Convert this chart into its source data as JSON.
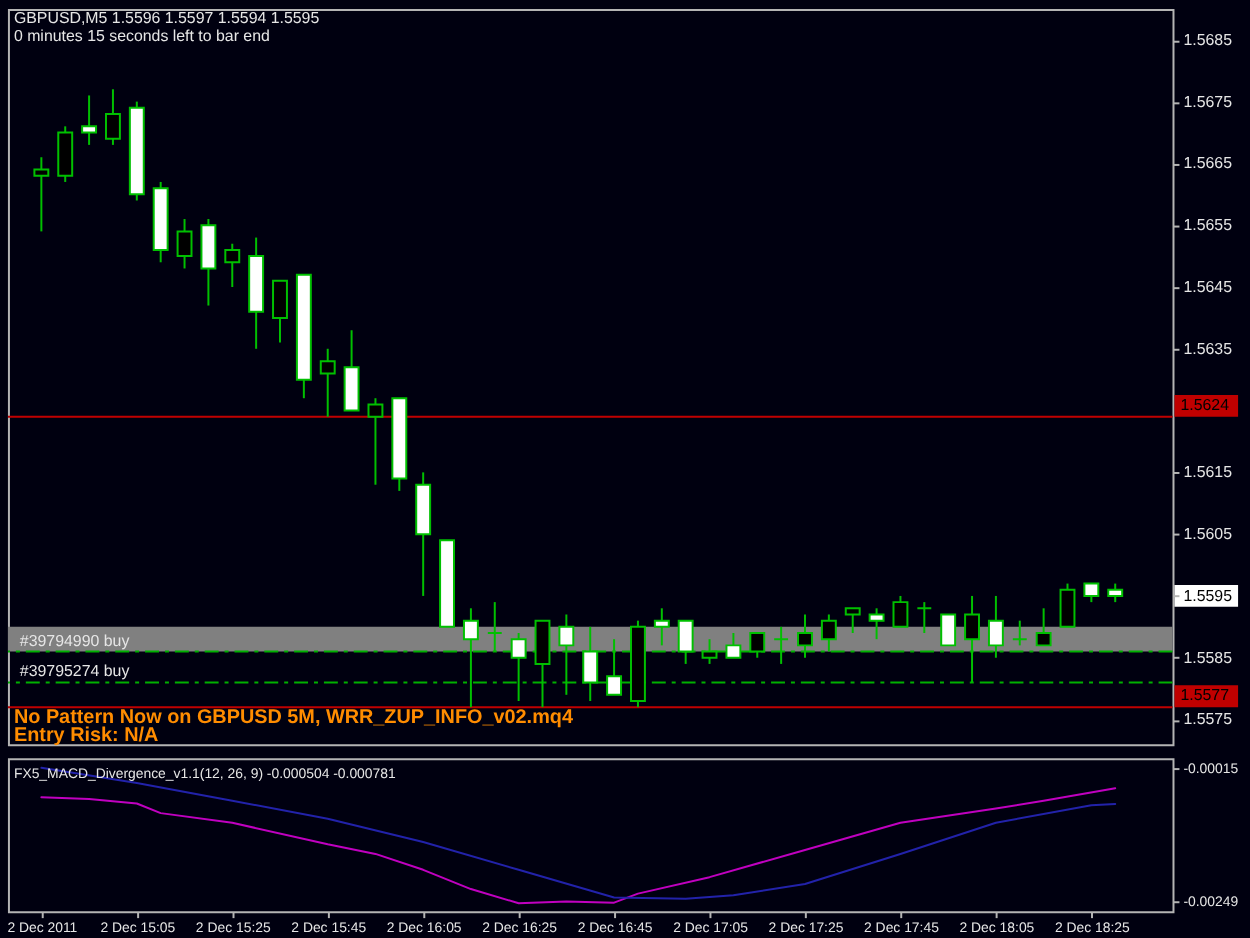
{
  "chart_data": [
    {
      "type": "candlestick",
      "title": "GBPUSD,M5  1.5596 1.5597 1.5594 1.5595",
      "subtitle": "0 minutes 15 seconds left to bar end",
      "x": [
        "2011-12-02T14:45",
        "2011-12-02T14:50",
        "2011-12-02T14:55",
        "2011-12-02T15:00",
        "2011-12-02T15:05",
        "2011-12-02T15:10",
        "2011-12-02T15:15",
        "2011-12-02T15:20",
        "2011-12-02T15:25",
        "2011-12-02T15:30",
        "2011-12-02T15:35",
        "2011-12-02T15:40",
        "2011-12-02T15:45",
        "2011-12-02T15:50",
        "2011-12-02T15:55",
        "2011-12-02T16:00",
        "2011-12-02T16:05",
        "2011-12-02T16:10",
        "2011-12-02T16:15",
        "2011-12-02T16:20",
        "2011-12-02T16:25",
        "2011-12-02T16:30",
        "2011-12-02T16:35",
        "2011-12-02T16:40",
        "2011-12-02T16:45",
        "2011-12-02T16:50",
        "2011-12-02T16:55",
        "2011-12-02T17:00",
        "2011-12-02T17:05",
        "2011-12-02T17:10",
        "2011-12-02T17:15",
        "2011-12-02T17:20",
        "2011-12-02T17:25",
        "2011-12-02T17:30",
        "2011-12-02T17:35",
        "2011-12-02T17:40",
        "2011-12-02T17:45",
        "2011-12-02T17:50",
        "2011-12-02T17:55",
        "2011-12-02T18:00",
        "2011-12-02T18:05",
        "2011-12-02T18:10",
        "2011-12-02T18:15",
        "2011-12-02T18:20",
        "2011-12-02T18:25",
        "2011-12-02T18:30"
      ],
      "ohlc": [
        [
          1.5663,
          1.5666,
          1.5654,
          1.5664
        ],
        [
          1.5663,
          1.5671,
          1.5662,
          1.567
        ],
        [
          1.5671,
          1.5676,
          1.5668,
          1.567
        ],
        [
          1.5669,
          1.5677,
          1.5668,
          1.5673
        ],
        [
          1.5674,
          1.5675,
          1.5659,
          1.566
        ],
        [
          1.5661,
          1.5662,
          1.5649,
          1.5651
        ],
        [
          1.565,
          1.5656,
          1.5648,
          1.5654
        ],
        [
          1.5655,
          1.5656,
          1.5642,
          1.5648
        ],
        [
          1.5649,
          1.5652,
          1.5645,
          1.5651
        ],
        [
          1.565,
          1.5653,
          1.5635,
          1.5641
        ],
        [
          1.564,
          1.5646,
          1.5636,
          1.5646
        ],
        [
          1.5647,
          1.5647,
          1.5627,
          1.563
        ],
        [
          1.5631,
          1.5635,
          1.5624,
          1.5633
        ],
        [
          1.5632,
          1.5638,
          1.5625,
          1.5625
        ],
        [
          1.5624,
          1.5627,
          1.5613,
          1.5626
        ],
        [
          1.5627,
          1.5627,
          1.5612,
          1.5614
        ],
        [
          1.5613,
          1.5615,
          1.5595,
          1.5605
        ],
        [
          1.5604,
          1.5604,
          1.559,
          1.559
        ],
        [
          1.5591,
          1.5593,
          1.5577,
          1.5588
        ],
        [
          1.5589,
          1.5594,
          1.5586,
          1.5589
        ],
        [
          1.5588,
          1.5589,
          1.5578,
          1.5585
        ],
        [
          1.5584,
          1.5591,
          1.5577,
          1.5591
        ],
        [
          1.559,
          1.5592,
          1.5579,
          1.5587
        ],
        [
          1.5586,
          1.559,
          1.5578,
          1.5581
        ],
        [
          1.5582,
          1.5588,
          1.5579,
          1.5579
        ],
        [
          1.5578,
          1.5591,
          1.5577,
          1.559
        ],
        [
          1.5591,
          1.5593,
          1.5587,
          1.559
        ],
        [
          1.5591,
          1.5591,
          1.5584,
          1.5586
        ],
        [
          1.5585,
          1.5588,
          1.5584,
          1.5586
        ],
        [
          1.5587,
          1.5589,
          1.5585,
          1.5585
        ],
        [
          1.5586,
          1.5589,
          1.5585,
          1.5589
        ],
        [
          1.5588,
          1.559,
          1.5584,
          1.5588
        ],
        [
          1.5587,
          1.5592,
          1.5585,
          1.5589
        ],
        [
          1.5588,
          1.5592,
          1.5586,
          1.5591
        ],
        [
          1.5592,
          1.5593,
          1.5589,
          1.5593
        ],
        [
          1.5592,
          1.5593,
          1.5588,
          1.5591
        ],
        [
          1.559,
          1.5595,
          1.559,
          1.5594
        ],
        [
          1.5593,
          1.5594,
          1.5589,
          1.5593
        ],
        [
          1.5592,
          1.5592,
          1.5587,
          1.5587
        ],
        [
          1.5588,
          1.5595,
          1.5581,
          1.5592
        ],
        [
          1.5591,
          1.5595,
          1.5585,
          1.5587
        ],
        [
          1.5588,
          1.5591,
          1.5587,
          1.5588
        ],
        [
          1.5587,
          1.5593,
          1.5587,
          1.5589
        ],
        [
          1.559,
          1.5597,
          1.559,
          1.5596
        ],
        [
          1.5597,
          1.5597,
          1.5594,
          1.5595
        ],
        [
          1.5596,
          1.5597,
          1.5594,
          1.5595
        ]
      ],
      "color": "#00c000",
      "colors": [
        "#000000",
        "#000000",
        "#ffffff",
        "#000000",
        "#ffffff",
        "#ffffff",
        "#000000",
        "#ffffff",
        "#000000",
        "#ffffff",
        "#000000",
        "#ffffff",
        "#000000",
        "#ffffff",
        "#000000",
        "#ffffff",
        "#ffffff",
        "#ffffff",
        "#ffffff",
        "#00c000",
        "#ffffff",
        "#000000",
        "#ffffff",
        "#ffffff",
        "#ffffff",
        "#000000",
        "#ffffff",
        "#ffffff",
        "#000000",
        "#ffffff",
        "#000000",
        "#00c000",
        "#000000",
        "#000000",
        "#000000",
        "#ffffff",
        "#000000",
        "#00c000",
        "#ffffff",
        "#000000",
        "#ffffff",
        "#00c000",
        "#000000",
        "#000000",
        "#ffffff",
        "#ffffff"
      ],
      "xlim": [
        "2011-12-02T14:38",
        "2011-12-02T18:42"
      ],
      "ylim": [
        1.5571,
        1.569
      ],
      "yticks": [
        1.5575,
        1.5585,
        1.5595,
        1.5605,
        1.5615,
        1.5635,
        1.5645,
        1.5655,
        1.5665,
        1.5675,
        1.5685
      ],
      "tick_labels": "y",
      "bands": [
        {
          "axis": "y",
          "from": 1.5586,
          "to": 1.559,
          "color": "#808080"
        }
      ],
      "ref_lines": [
        {
          "axis": "y",
          "value": 1.5624,
          "label": "1.5624",
          "color": "#c00000"
        },
        {
          "axis": "y",
          "value": 1.5577,
          "label": "1.5577",
          "color": "#c00000"
        },
        {
          "axis": "y",
          "value": 1.5586,
          "label": "#39794990 buy",
          "color": "#00b000",
          "line_style": "dashed"
        },
        {
          "axis": "y",
          "value": 1.5581,
          "label": "#39795274 buy",
          "color": "#00b000",
          "line_style": "dashed"
        }
      ],
      "annotations": [
        "No Pattern Now on GBPUSD 5M,  WRR_ZUP_INFO_v02.mq4",
        "Entry Risk: N/A"
      ]
    },
    {
      "type": "line",
      "title": "FX5_MACD_Divergence_v1.1(12, 26, 9) -0.000504 -0.000781",
      "xlim": [
        "2011-12-02T14:38",
        "2011-12-02T18:42"
      ],
      "xticks": [
        {
          "value": "2011-12-02T14:45",
          "label": "2 Dec 2011"
        },
        {
          "value": "2011-12-02T15:05",
          "label": "2 Dec 15:05"
        },
        {
          "value": "2011-12-02T15:25",
          "label": "2 Dec 15:25"
        },
        {
          "value": "2011-12-02T15:45",
          "label": "2 Dec 15:45"
        },
        {
          "value": "2011-12-02T16:05",
          "label": "2 Dec 16:05"
        },
        {
          "value": "2011-12-02T16:25",
          "label": "2 Dec 16:25"
        },
        {
          "value": "2011-12-02T16:45",
          "label": "2 Dec 16:45"
        },
        {
          "value": "2011-12-02T17:05",
          "label": "2 Dec 17:05"
        },
        {
          "value": "2011-12-02T17:25",
          "label": "2 Dec 17:25"
        },
        {
          "value": "2011-12-02T17:45",
          "label": "2 Dec 17:45"
        },
        {
          "value": "2011-12-02T18:05",
          "label": "2 Dec 18:05"
        },
        {
          "value": "2011-12-02T18:25",
          "label": "2 Dec 18:25"
        }
      ],
      "ylim": [
        -0.00267,
        3e-05
      ],
      "yticks": [
        -0.00249,
        -0.00015
      ],
      "series": [
        {
          "color": "#c000c0",
          "x": [
            "2011-12-02T14:45",
            "2011-12-02T14:55",
            "2011-12-02T15:05",
            "2011-12-02T15:10",
            "2011-12-02T15:25",
            "2011-12-02T15:45",
            "2011-12-02T15:55",
            "2011-12-02T16:05",
            "2011-12-02T16:15",
            "2011-12-02T16:25",
            "2011-12-02T16:35",
            "2011-12-02T16:45",
            "2011-12-02T16:50",
            "2011-12-02T17:05",
            "2011-12-02T17:25",
            "2011-12-02T17:45",
            "2011-12-02T18:05",
            "2011-12-02T18:15",
            "2011-12-02T18:30"
          ],
          "values": [
            -0.00066,
            -0.00069,
            -0.00077,
            -0.00094,
            -0.00111,
            -0.00149,
            -0.00166,
            -0.00194,
            -0.00228,
            -0.00253,
            -0.0025,
            -0.00252,
            -0.00236,
            -0.00207,
            -0.00159,
            -0.00111,
            -0.00086,
            -0.00072,
            -0.0005
          ]
        },
        {
          "color": "#2222aa",
          "x": [
            "2011-12-02T14:45",
            "2011-12-02T15:05",
            "2011-12-02T15:25",
            "2011-12-02T15:45",
            "2011-12-02T16:05",
            "2011-12-02T16:25",
            "2011-12-02T16:45",
            "2011-12-02T17:00",
            "2011-12-02T17:10",
            "2011-12-02T17:25",
            "2011-12-02T17:45",
            "2011-12-02T18:05",
            "2011-12-02T18:25",
            "2011-12-02T18:30"
          ],
          "values": [
            -0.00014,
            -0.00041,
            -0.00072,
            -0.00104,
            -0.00145,
            -0.00194,
            -0.00243,
            -0.00245,
            -0.00239,
            -0.00219,
            -0.00166,
            -0.00111,
            -0.0008,
            -0.00078
          ]
        }
      ]
    }
  ]
}
